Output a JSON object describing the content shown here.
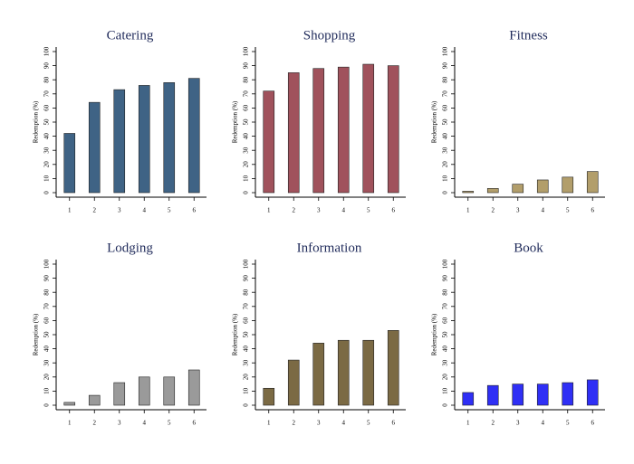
{
  "chart_data": [
    {
      "type": "bar",
      "title": "Catering",
      "ylabel": "Redemption (%)",
      "categories": [
        "1",
        "2",
        "3",
        "4",
        "5",
        "6"
      ],
      "values": [
        42,
        64,
        73,
        76,
        78,
        81
      ],
      "color": "#3f6385",
      "ylim": [
        0,
        100
      ],
      "yticks": [
        0,
        10,
        20,
        30,
        40,
        50,
        60,
        70,
        80,
        90,
        100
      ]
    },
    {
      "type": "bar",
      "title": "Shopping",
      "ylabel": "Redemption (%)",
      "categories": [
        "1",
        "2",
        "3",
        "4",
        "5",
        "6"
      ],
      "values": [
        72,
        85,
        88,
        89,
        91,
        90
      ],
      "color": "#a0525c",
      "ylim": [
        0,
        100
      ],
      "yticks": [
        0,
        10,
        20,
        30,
        40,
        50,
        60,
        70,
        80,
        90,
        100
      ]
    },
    {
      "type": "bar",
      "title": "Fitness",
      "ylabel": "Redemption (%)",
      "categories": [
        "1",
        "2",
        "3",
        "4",
        "5",
        "6"
      ],
      "values": [
        1,
        3,
        6,
        9,
        11,
        15
      ],
      "color": "#b29e6b",
      "ylim": [
        0,
        100
      ],
      "yticks": [
        0,
        10,
        20,
        30,
        40,
        50,
        60,
        70,
        80,
        90,
        100
      ]
    },
    {
      "type": "bar",
      "title": "Lodging",
      "ylabel": "Redemption (%)",
      "categories": [
        "1",
        "2",
        "3",
        "4",
        "5",
        "6"
      ],
      "values": [
        2,
        7,
        16,
        20,
        20,
        25
      ],
      "color": "#9a9a9a",
      "ylim": [
        0,
        100
      ],
      "yticks": [
        0,
        10,
        20,
        30,
        40,
        50,
        60,
        70,
        80,
        90,
        100
      ]
    },
    {
      "type": "bar",
      "title": "Information",
      "ylabel": "Redemption (%)",
      "categories": [
        "1",
        "2",
        "3",
        "4",
        "5",
        "6"
      ],
      "values": [
        12,
        32,
        44,
        46,
        46,
        53
      ],
      "color": "#7b6a44",
      "ylim": [
        0,
        100
      ],
      "yticks": [
        0,
        10,
        20,
        30,
        40,
        50,
        60,
        70,
        80,
        90,
        100
      ]
    },
    {
      "type": "bar",
      "title": "Book",
      "ylabel": "Redemption (%)",
      "categories": [
        "1",
        "2",
        "3",
        "4",
        "5",
        "6"
      ],
      "values": [
        9,
        14,
        15,
        15,
        16,
        18
      ],
      "color": "#2f2ff5",
      "ylim": [
        0,
        100
      ],
      "yticks": [
        0,
        10,
        20,
        30,
        40,
        50,
        60,
        70,
        80,
        90,
        100
      ]
    }
  ]
}
